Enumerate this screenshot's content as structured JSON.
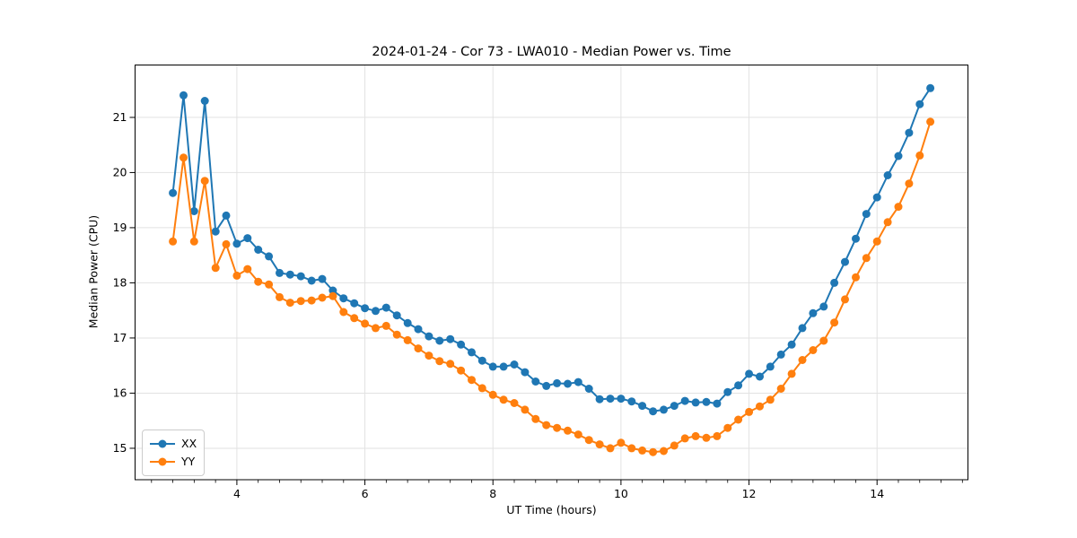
{
  "figure": {
    "title": "2024-01-24 - Cor 73 - LWA010 - Median Power vs. Time",
    "xlabel": "UT Time (hours)",
    "ylabel": "Median Power (CPU)"
  },
  "chart_data": {
    "type": "line",
    "title": "2024-01-24 - Cor 73 - LWA010 - Median Power vs. Time",
    "xlabel": "UT Time (hours)",
    "ylabel": "Median Power (CPU)",
    "xlim": [
      2.41,
      15.42
    ],
    "ylim": [
      14.43,
      21.95
    ],
    "xticks": [
      4,
      6,
      8,
      10,
      12,
      14
    ],
    "yticks": [
      15,
      16,
      17,
      18,
      19,
      20,
      21
    ],
    "x_minor_step": 0.33333,
    "grid": true,
    "grid_color": "#e2e2e2",
    "legend_position": "lower left",
    "x": [
      3.0,
      3.167,
      3.333,
      3.5,
      3.667,
      3.833,
      4.0,
      4.167,
      4.333,
      4.5,
      4.667,
      4.833,
      5.0,
      5.167,
      5.333,
      5.5,
      5.667,
      5.833,
      6.0,
      6.167,
      6.333,
      6.5,
      6.667,
      6.833,
      7.0,
      7.167,
      7.333,
      7.5,
      7.667,
      7.833,
      8.0,
      8.167,
      8.333,
      8.5,
      8.667,
      8.833,
      9.0,
      9.167,
      9.333,
      9.5,
      9.667,
      9.833,
      10.0,
      10.167,
      10.333,
      10.5,
      10.667,
      10.833,
      11.0,
      11.167,
      11.333,
      11.5,
      11.667,
      11.833,
      12.0,
      12.167,
      12.333,
      12.5,
      12.667,
      12.833,
      13.0,
      13.167,
      13.333,
      13.5,
      13.667,
      13.833,
      14.0,
      14.167,
      14.333,
      14.5,
      14.667,
      14.833
    ],
    "series": [
      {
        "name": "XX",
        "color": "#1f77b4",
        "values": [
          19.63,
          21.4,
          19.3,
          21.3,
          18.93,
          19.22,
          18.71,
          18.81,
          18.6,
          18.48,
          18.18,
          18.15,
          18.12,
          18.04,
          18.07,
          17.86,
          17.72,
          17.63,
          17.54,
          17.49,
          17.55,
          17.41,
          17.27,
          17.16,
          17.03,
          16.95,
          16.98,
          16.88,
          16.74,
          16.59,
          16.48,
          16.48,
          16.52,
          16.38,
          16.21,
          16.13,
          16.18,
          16.17,
          16.2,
          16.08,
          15.89,
          15.9,
          15.9,
          15.85,
          15.77,
          15.67,
          15.7,
          15.77,
          15.86,
          15.83,
          15.84,
          15.81,
          16.02,
          16.14,
          16.35,
          16.3,
          16.48,
          16.7,
          16.88,
          17.18,
          17.45,
          17.57,
          18.0,
          18.38,
          18.8,
          19.25,
          19.55,
          19.95,
          20.3,
          20.72,
          21.24,
          21.53
        ]
      },
      {
        "name": "YY",
        "color": "#ff7f0e",
        "values": [
          18.75,
          20.27,
          18.75,
          19.85,
          18.27,
          18.7,
          18.13,
          18.25,
          18.02,
          17.97,
          17.74,
          17.64,
          17.67,
          17.68,
          17.73,
          17.76,
          17.47,
          17.36,
          17.26,
          17.18,
          17.22,
          17.06,
          16.96,
          16.81,
          16.68,
          16.58,
          16.53,
          16.41,
          16.24,
          16.09,
          15.97,
          15.88,
          15.82,
          15.7,
          15.53,
          15.42,
          15.37,
          15.32,
          15.25,
          15.15,
          15.07,
          15.0,
          15.1,
          15.0,
          14.96,
          14.93,
          14.95,
          15.05,
          15.18,
          15.22,
          15.19,
          15.22,
          15.37,
          15.52,
          15.66,
          15.76,
          15.88,
          16.08,
          16.35,
          16.6,
          16.78,
          16.95,
          17.28,
          17.7,
          18.1,
          18.45,
          18.75,
          19.1,
          19.38,
          19.8,
          20.31,
          20.92
        ]
      }
    ]
  }
}
